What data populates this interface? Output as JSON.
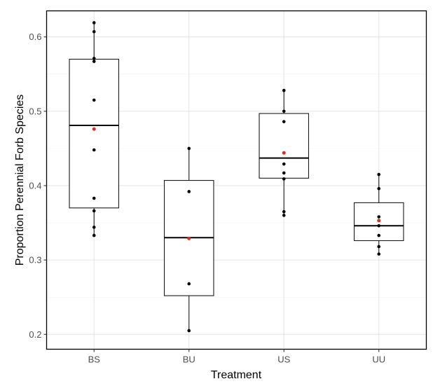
{
  "chart_data": {
    "type": "boxplot",
    "title": "",
    "xlabel": "Treatment",
    "ylabel": "Proportion Perennial Forb Species",
    "ylim": [
      0.18,
      0.635
    ],
    "yticks": [
      0.2,
      0.3,
      0.4,
      0.5,
      0.6
    ],
    "ytick_labels": [
      "0.2",
      "0.3",
      "0.4",
      "0.5",
      "0.6"
    ],
    "grid": true,
    "categories": [
      "BS",
      "BU",
      "US",
      "UU"
    ],
    "boxes": [
      {
        "category": "BS",
        "whisker_low": 0.333,
        "q1": 0.37,
        "median": 0.481,
        "q3": 0.57,
        "whisker_high": 0.619,
        "mean": 0.476,
        "points": [
          0.619,
          0.607,
          0.571,
          0.567,
          0.515,
          0.448,
          0.383,
          0.366,
          0.344,
          0.333
        ]
      },
      {
        "category": "BU",
        "whisker_low": 0.205,
        "q1": 0.252,
        "median": 0.33,
        "q3": 0.407,
        "whisker_high": 0.45,
        "mean": 0.329,
        "points": [
          0.45,
          0.392,
          0.268,
          0.205
        ]
      },
      {
        "category": "US",
        "whisker_low": 0.36,
        "q1": 0.41,
        "median": 0.437,
        "q3": 0.497,
        "whisker_high": 0.528,
        "mean": 0.444,
        "points": [
          0.528,
          0.5,
          0.486,
          0.444,
          0.429,
          0.417,
          0.409,
          0.365,
          0.36
        ]
      },
      {
        "category": "UU",
        "whisker_low": 0.308,
        "q1": 0.326,
        "median": 0.346,
        "q3": 0.377,
        "whisker_high": 0.415,
        "mean": 0.353,
        "points": [
          0.415,
          0.396,
          0.358,
          0.346,
          0.333,
          0.318,
          0.308
        ]
      }
    ],
    "colors": {
      "points": "#000000",
      "mean": "#d7301f",
      "box_fill": "#ffffff",
      "box_stroke": "#1a1a1a"
    }
  }
}
